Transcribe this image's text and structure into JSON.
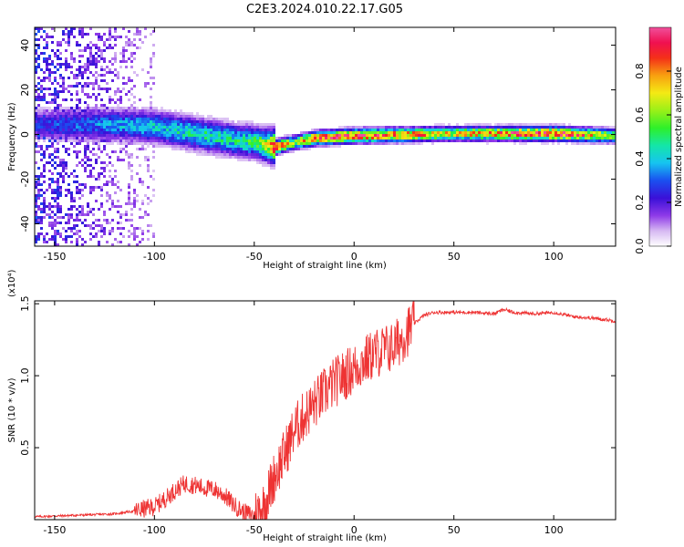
{
  "title": "C2E3.2024.010.22.17.G05",
  "chart_data": [
    {
      "type": "heatmap",
      "xlabel": "Height of straight line (km)",
      "ylabel": "Frequency (Hz)",
      "xlim": [
        -160,
        131
      ],
      "ylim": [
        -50,
        48
      ],
      "xticks": [
        -150,
        -100,
        -50,
        0,
        50,
        100
      ],
      "yticks": [
        -40,
        -20,
        0,
        20,
        40
      ],
      "colorbar": {
        "label": "Normalized spectral amplitude",
        "range": [
          0,
          1
        ],
        "ticks": [
          "0.0",
          "0.2",
          "0.4",
          "0.6",
          "0.8"
        ]
      },
      "ridge": {
        "description_points_x": [
          -160,
          -140,
          -120,
          -100,
          -80,
          -60,
          -50,
          -45,
          -40,
          -35,
          -30,
          -20,
          0,
          50,
          100,
          131
        ],
        "center_freq_hz": [
          5,
          5,
          5,
          4,
          1,
          -2,
          -3,
          -4,
          -5,
          -4,
          -3,
          -1,
          0,
          1,
          1,
          0
        ],
        "peak_amplitude": [
          0.25,
          0.3,
          0.35,
          0.4,
          0.45,
          0.45,
          0.5,
          0.6,
          0.9,
          0.8,
          0.6,
          0.9,
          0.9,
          0.7,
          0.95,
          0.6
        ]
      }
    },
    {
      "type": "line",
      "xlabel": "Height of straight line (km)",
      "ylabel": "SNR (10 * v/v)",
      "y_multiplier": "(x10⁴)",
      "xlim": [
        -160,
        131
      ],
      "ylim": [
        0,
        1.52
      ],
      "xticks": [
        -150,
        -100,
        -50,
        0,
        50,
        100
      ],
      "yticks": [
        "0.5",
        "1.0",
        "1.5"
      ],
      "series": [
        {
          "color": "#ee3333",
          "x": [
            -160,
            -140,
            -120,
            -110,
            -100,
            -95,
            -90,
            -85,
            -80,
            -75,
            -70,
            -65,
            -60,
            -55,
            -50,
            -45,
            -42,
            -40,
            -35,
            -30,
            -25,
            -20,
            -15,
            -10,
            -5,
            0,
            5,
            10,
            15,
            20,
            25,
            30,
            35,
            40,
            50,
            60,
            70,
            75,
            80,
            90,
            100,
            110,
            120,
            131
          ],
          "y": [
            0.02,
            0.03,
            0.04,
            0.06,
            0.09,
            0.14,
            0.2,
            0.25,
            0.24,
            0.22,
            0.21,
            0.17,
            0.1,
            0.05,
            0.03,
            0.1,
            0.22,
            0.3,
            0.45,
            0.62,
            0.72,
            0.8,
            0.88,
            0.95,
            1.0,
            1.05,
            1.1,
            1.15,
            1.18,
            1.2,
            1.28,
            1.36,
            1.42,
            1.44,
            1.44,
            1.44,
            1.43,
            1.46,
            1.44,
            1.43,
            1.44,
            1.41,
            1.4,
            1.38
          ]
        }
      ]
    }
  ]
}
